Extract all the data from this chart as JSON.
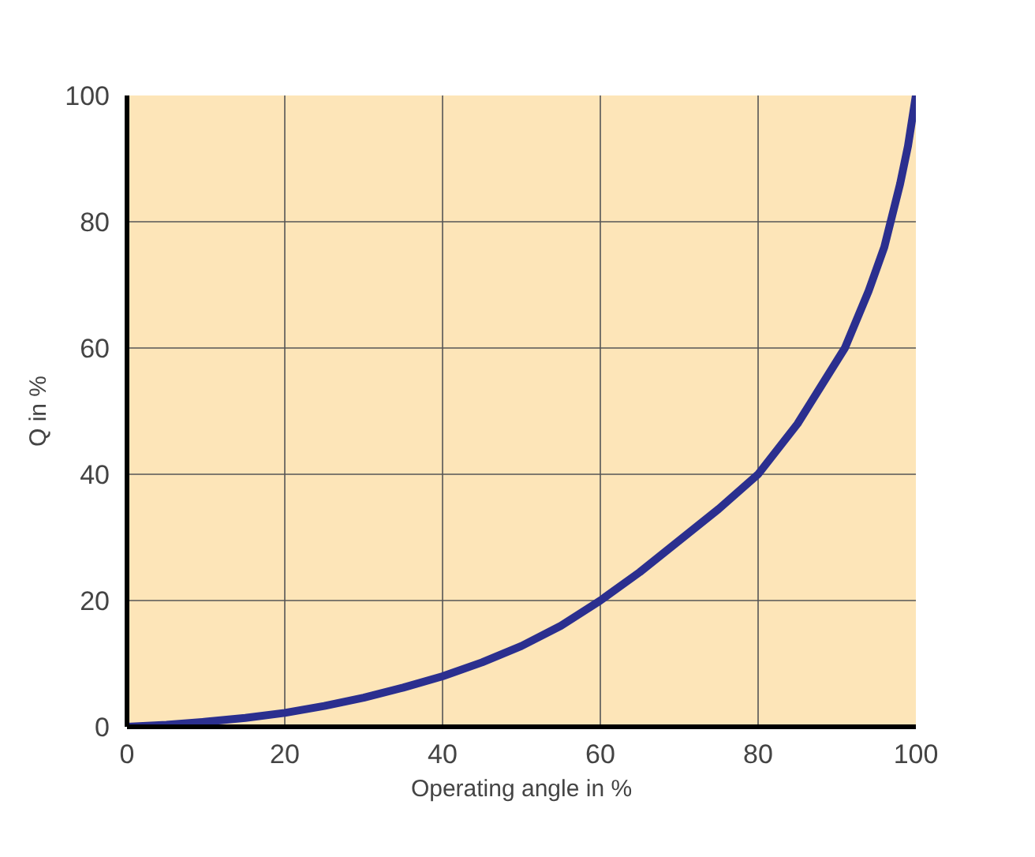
{
  "chart_data": {
    "type": "line",
    "xlabel": "Operating angle in %",
    "ylabel": "Q in %",
    "x": [
      0,
      5,
      10,
      15,
      20,
      25,
      30,
      35,
      40,
      45,
      50,
      55,
      60,
      65,
      70,
      75,
      80,
      85,
      88,
      91,
      94,
      96,
      98,
      99,
      100
    ],
    "series": [
      {
        "color": "#2b2f8f",
        "values": [
          0,
          0.3,
          0.8,
          1.4,
          2.2,
          3.3,
          4.6,
          6.2,
          8,
          10.2,
          12.8,
          16,
          20,
          24.5,
          29.5,
          34.5,
          40,
          48,
          54,
          60,
          69,
          76,
          86,
          92,
          100
        ]
      }
    ],
    "xlim": [
      0,
      100
    ],
    "ylim": [
      0,
      100
    ],
    "xticks": [
      0,
      20,
      40,
      60,
      80,
      100
    ],
    "yticks": [
      0,
      20,
      40,
      60,
      80,
      100
    ],
    "grid": true,
    "line_style": "solid",
    "marker": "none"
  }
}
